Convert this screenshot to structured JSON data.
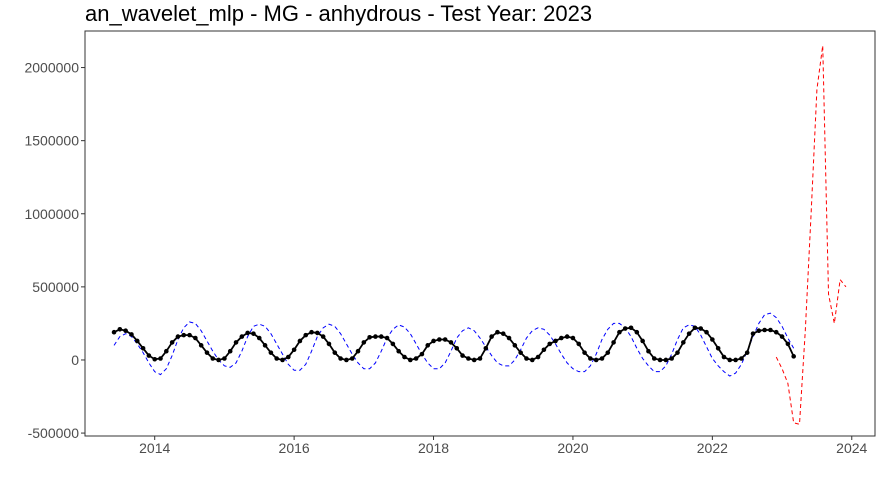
{
  "chart_data": {
    "type": "line",
    "title": "an_wavelet_mlp - MG - anhydrous - Test Year: 2023",
    "xlabel": "",
    "ylabel": "",
    "x_start": "2013-06",
    "x_step": "month",
    "xlim": [
      "2013-01",
      "2024-05"
    ],
    "ylim": [
      -520000,
      2250000
    ],
    "x_tick_labels": [
      "2014",
      "2016",
      "2018",
      "2020",
      "2022",
      "2024"
    ],
    "y_tick_labels": [
      "-500000",
      "0",
      "500000",
      "1000000",
      "1500000",
      "2000000"
    ],
    "grid": false,
    "legend": "none",
    "series": [
      {
        "style": "black line with points",
        "color": "#000000",
        "start": "2013-06",
        "values": [
          190000,
          210000,
          200000,
          175000,
          130000,
          80000,
          30000,
          5000,
          10000,
          60000,
          120000,
          160000,
          170000,
          170000,
          150000,
          100000,
          50000,
          10000,
          0,
          10000,
          60000,
          120000,
          160000,
          185000,
          180000,
          150000,
          100000,
          50000,
          10000,
          0,
          20000,
          70000,
          130000,
          170000,
          190000,
          185000,
          160000,
          110000,
          50000,
          10000,
          0,
          10000,
          60000,
          120000,
          155000,
          160000,
          160000,
          150000,
          110000,
          60000,
          20000,
          0,
          10000,
          40000,
          100000,
          130000,
          140000,
          140000,
          120000,
          80000,
          30000,
          10000,
          0,
          10000,
          80000,
          160000,
          190000,
          180000,
          150000,
          100000,
          50000,
          10000,
          0,
          20000,
          70000,
          110000,
          130000,
          150000,
          160000,
          150000,
          110000,
          50000,
          10000,
          0,
          10000,
          50000,
          120000,
          190000,
          215000,
          220000,
          190000,
          130000,
          60000,
          10000,
          0,
          0,
          10000,
          50000,
          120000,
          180000,
          220000,
          215000,
          190000,
          140000,
          80000,
          20000,
          0,
          0,
          10000,
          50000,
          180000,
          200000,
          205000,
          205000,
          190000,
          160000,
          110000,
          25000
        ]
      },
      {
        "style": "dashed",
        "color": "#0000ff",
        "start": "2013-06",
        "values": [
          100000,
          160000,
          180000,
          160000,
          110000,
          50000,
          -20000,
          -80000,
          -100000,
          -60000,
          30000,
          140000,
          220000,
          260000,
          250000,
          200000,
          130000,
          60000,
          0,
          -40000,
          -50000,
          -20000,
          60000,
          160000,
          230000,
          245000,
          230000,
          180000,
          110000,
          40000,
          -30000,
          -70000,
          -70000,
          -30000,
          60000,
          160000,
          220000,
          245000,
          230000,
          180000,
          110000,
          40000,
          -20000,
          -60000,
          -60000,
          -20000,
          60000,
          150000,
          210000,
          240000,
          225000,
          180000,
          110000,
          40000,
          -20000,
          -60000,
          -60000,
          -20000,
          60000,
          150000,
          200000,
          220000,
          200000,
          150000,
          90000,
          30000,
          -20000,
          -40000,
          -40000,
          0,
          70000,
          150000,
          200000,
          220000,
          210000,
          170000,
          110000,
          40000,
          -20000,
          -60000,
          -80000,
          -80000,
          -40000,
          40000,
          140000,
          210000,
          250000,
          250000,
          220000,
          160000,
          80000,
          10000,
          -40000,
          -80000,
          -80000,
          -40000,
          40000,
          140000,
          220000,
          240000,
          230000,
          170000,
          90000,
          10000,
          -40000,
          -80000,
          -110000,
          -90000,
          -30000,
          60000,
          160000,
          250000,
          310000,
          320000,
          290000,
          230000,
          150000,
          80000
        ]
      },
      {
        "style": "dashed",
        "color": "#ff0000",
        "start": "2022-12",
        "values": [
          20000,
          -60000,
          -160000,
          -430000,
          -440000,
          200000,
          1000000,
          1850000,
          2150000,
          450000,
          250000,
          550000,
          500000
        ]
      }
    ]
  }
}
